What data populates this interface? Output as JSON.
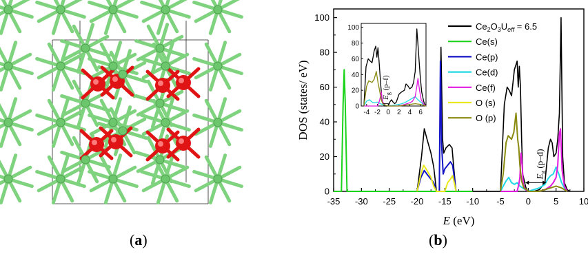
{
  "panels": {
    "a": "a",
    "b": "b"
  },
  "crystal": {
    "cerium_color": "#7fd37f",
    "oxygen_color": "#e01414",
    "cell_edge_color": "#222222"
  },
  "chart_data": [
    {
      "type": "line",
      "xlabel_symbol": "E",
      "xlabel_unit": " (eV)",
      "ylabel": "DOS (states/ eV)",
      "xlim": [
        -35,
        10
      ],
      "ylim": [
        0,
        105
      ],
      "xticks": [
        -35,
        -30,
        -25,
        -20,
        -15,
        -10,
        -5,
        0,
        5,
        10
      ],
      "yticks": [
        0,
        20,
        40,
        60,
        80,
        100
      ],
      "annotation": {
        "symbol": "E",
        "sub": "g",
        "text": " (p–d)"
      },
      "legend_position": "top-right",
      "series": [
        {
          "name": "Ce2O3 Ueff = 6.5",
          "legend_parts": {
            "a": "Ce",
            "s1": "2",
            "b": "O",
            "s2": "3",
            "c": "U",
            "s3": "eff",
            "d": " = 6.5"
          },
          "color": "#000000",
          "x": [
            -20,
            -19.2,
            -18.7,
            -18.2,
            -17.5,
            -17,
            -16.5,
            -16,
            -15.7,
            -15.4,
            -15.2,
            -14.8,
            -14.2,
            -13.7,
            -13.4,
            -13,
            -5,
            -4.3,
            -3.8,
            -3.4,
            -3,
            -2.5,
            -2,
            -1.8,
            -1.6,
            -1.4,
            -1.2,
            -1,
            -0.5,
            -0.2,
            0,
            1,
            2,
            3,
            3.6,
            4,
            4.3,
            4.6,
            5,
            5.3,
            5.6,
            5.9,
            6.2,
            6.5,
            7,
            7.5
          ],
          "y": [
            0,
            20,
            36,
            30,
            22,
            14,
            0,
            0,
            83,
            30,
            22,
            25,
            27,
            25,
            14,
            0,
            0,
            50,
            60,
            58,
            55,
            70,
            75,
            60,
            72,
            60,
            30,
            10,
            3,
            0,
            0,
            0,
            1,
            5,
            25,
            30,
            28,
            20,
            22,
            30,
            45,
            100,
            20,
            5,
            1,
            0
          ]
        },
        {
          "name": "Ce(s)",
          "color": "#1ad31a",
          "x": [
            -35,
            -33.6,
            -33.3,
            -33.1,
            -32.9,
            -32.6,
            -10
          ],
          "y": [
            0,
            0,
            50,
            70,
            50,
            0,
            0
          ]
        },
        {
          "name": "Ce(p)",
          "color": "#1515c8",
          "x": [
            -20,
            -19.3,
            -18.7,
            -18,
            -17,
            -16.5,
            -16,
            -15.8,
            -15.6,
            -15.3,
            -15,
            -14.5,
            -14,
            -13.6,
            -13.3,
            -13
          ],
          "y": [
            0,
            8,
            12,
            9,
            5,
            0,
            0,
            75,
            28,
            10,
            13,
            15,
            17,
            15,
            8,
            0
          ]
        },
        {
          "name": "Ce(d)",
          "color": "#20d8e6",
          "x": [
            -5,
            -4,
            -3.5,
            -3,
            -2.5,
            -2,
            -1.5,
            -1,
            -0.5,
            0,
            1,
            2,
            3,
            3.5,
            4,
            4.5,
            5,
            5.5,
            6,
            6.5,
            7
          ],
          "y": [
            0,
            6,
            8,
            5,
            4,
            5,
            3,
            2,
            1,
            0,
            1,
            2,
            4,
            7,
            9,
            10,
            14,
            10,
            5,
            2,
            0
          ]
        },
        {
          "name": "Ce(f)",
          "color": "#e01ae0",
          "x": [
            -5,
            -2,
            -1.7,
            -1.5,
            -1.3,
            -1.1,
            -0.9,
            -0.5,
            0,
            2,
            3,
            3.5,
            4,
            4.5,
            5,
            5.3,
            5.6,
            5.8,
            6.1,
            6.5,
            7
          ],
          "y": [
            0,
            0,
            4,
            8,
            22,
            15,
            4,
            1,
            0,
            0,
            1,
            2,
            3,
            5,
            8,
            15,
            33,
            36,
            12,
            3,
            0
          ]
        },
        {
          "name": "O (s)",
          "color": "#e8e81a",
          "x": [
            -20,
            -19.3,
            -18.8,
            -18.2,
            -17.5,
            -17,
            -16.5,
            -15,
            -14.5,
            -14,
            -13.6,
            -13.3,
            -13
          ],
          "y": [
            0,
            10,
            15,
            12,
            8,
            3,
            0,
            0,
            5,
            7,
            9,
            5,
            0
          ]
        },
        {
          "name": "O (p)",
          "color": "#8a8a10",
          "x": [
            -5,
            -4.5,
            -4,
            -3.6,
            -3,
            -2.6,
            -2.2,
            -1.9,
            -1.7,
            -1.5,
            -1.2,
            -0.8,
            -0.3,
            0,
            2,
            3,
            4,
            5,
            6,
            7
          ],
          "y": [
            0,
            10,
            28,
            32,
            30,
            34,
            45,
            30,
            25,
            15,
            6,
            2,
            1,
            0,
            0,
            1,
            2,
            3,
            2,
            0
          ]
        }
      ]
    },
    {
      "type": "line",
      "name": "inset",
      "xlim": [
        -5,
        7
      ],
      "ylim": [
        0,
        105
      ],
      "xticks": [
        -4,
        -2,
        0,
        2,
        4,
        6
      ],
      "yticks": [
        0,
        20,
        40,
        60,
        80,
        100
      ],
      "annotation": {
        "symbol": "E",
        "sub": "g",
        "text": " (p–f)"
      },
      "series": [
        {
          "name": "Ce2O3 Ueff = 6.5",
          "color": "#000000",
          "x": [
            -4.5,
            -4.1,
            -3.7,
            -3.3,
            -3,
            -2.6,
            -2.3,
            -2.1,
            -1.9,
            -1.7,
            -1.4,
            -1.2,
            -1,
            -0.7,
            -0.4,
            -0.2,
            0,
            0.3,
            0.6,
            0.9,
            1.2,
            1.5,
            2,
            2.5,
            3,
            3.3,
            3.6,
            4,
            4.4,
            4.7,
            5,
            5.3,
            5.6,
            5.9,
            6.2,
            6.6,
            7
          ],
          "y": [
            0,
            50,
            60,
            57,
            55,
            70,
            76,
            62,
            74,
            57,
            28,
            12,
            3,
            0,
            0,
            0,
            0,
            5,
            8,
            5,
            3,
            5,
            15,
            18,
            20,
            28,
            26,
            22,
            24,
            30,
            44,
            98,
            70,
            40,
            18,
            5,
            0
          ]
        },
        {
          "name": "Ce(d)",
          "color": "#20d8e6",
          "x": [
            -4.5,
            -4,
            -3.5,
            -3,
            -2.5,
            -2,
            -1.5,
            -1,
            0,
            1,
            2,
            3,
            4,
            5,
            5.5,
            6,
            6.5,
            7
          ],
          "y": [
            0,
            6,
            8,
            5,
            4,
            5,
            3,
            2,
            0,
            1,
            2,
            4,
            8,
            12,
            8,
            5,
            2,
            0
          ]
        },
        {
          "name": "Ce(f)",
          "color": "#e01ae0",
          "x": [
            -4.5,
            -2,
            -1.7,
            -1.5,
            -1.3,
            -1,
            -0.5,
            0,
            2,
            3,
            4,
            4.5,
            5,
            5.3,
            5.5,
            5.8,
            6.1,
            6.5,
            7
          ],
          "y": [
            0,
            0,
            5,
            10,
            18,
            5,
            1,
            0,
            0,
            2,
            4,
            6,
            12,
            25,
            35,
            20,
            8,
            3,
            0
          ]
        },
        {
          "name": "O (p)",
          "color": "#8a8a10",
          "x": [
            -4.5,
            -4,
            -3.6,
            -3,
            -2.6,
            -2.2,
            -1.9,
            -1.6,
            -1.3,
            -1,
            -0.5,
            0,
            2,
            4,
            5,
            6,
            7
          ],
          "y": [
            0,
            25,
            32,
            30,
            34,
            44,
            30,
            20,
            8,
            3,
            1,
            0,
            0,
            2,
            3,
            2,
            0
          ]
        }
      ]
    }
  ]
}
